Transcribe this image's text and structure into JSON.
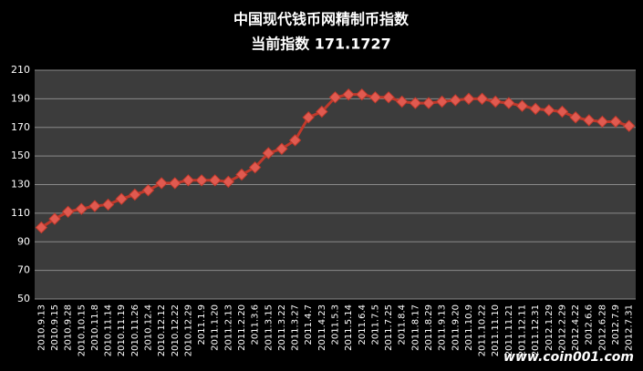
{
  "chart_data": {
    "type": "line",
    "title": "中国现代钱币网精制币指数",
    "subtitle": "当前指数 171.1727",
    "watermark": "www.coin001.com",
    "categories": [
      "2010.9.13",
      "2010.9.15",
      "2010.9.28",
      "2010.10.15",
      "2010.11.8",
      "2010.11.14",
      "2010.11.19",
      "2010.11.26",
      "2010.12.4",
      "2010.12.12",
      "2010.12.22",
      "2010.12.29",
      "2011.1.9",
      "2011.1.20",
      "2011.2.13",
      "2011.2.20",
      "2011.3.6",
      "2011.3.15",
      "2011.3.22",
      "2011.3.27",
      "2011.4.7",
      "2011.4.23",
      "2011.5.3",
      "2011.5.14",
      "2011.6.4",
      "2011.7.5",
      "2011.7.25",
      "2011.8.4",
      "2011.8.17",
      "2011.8.29",
      "2011.9.13",
      "2011.9.20",
      "2011.10.9",
      "2011.10.22",
      "2011.11.10",
      "2011.11.21",
      "2011.12.11",
      "2011.12.31",
      "2012.1.29",
      "2012.2.29",
      "2012.4.22",
      "2012.6.6",
      "2012.6.28",
      "2012.7.9",
      "2012.7.31"
    ],
    "values": [
      100,
      106,
      111,
      113,
      115,
      116,
      120,
      123,
      126,
      131,
      131,
      133,
      133,
      133,
      132,
      137,
      142,
      152,
      155,
      161,
      177,
      181,
      191,
      193,
      193,
      191,
      191,
      188,
      187,
      187,
      188,
      189,
      190,
      190,
      188,
      187,
      185,
      183,
      182,
      181,
      177,
      175,
      174,
      174,
      171
    ],
    "color": "#c0392b",
    "ylim": [
      50,
      210
    ],
    "yticks": [
      50,
      70,
      90,
      110,
      130,
      150,
      170,
      190,
      210
    ],
    "grid": true
  }
}
